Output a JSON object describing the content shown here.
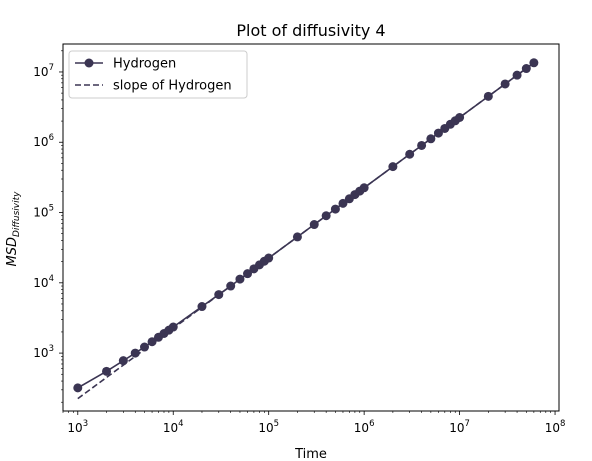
{
  "chart_data": {
    "type": "line",
    "title": "Plot of diffusivity 4",
    "xlabel": "Time",
    "ylabel": "MSD",
    "ylabel_sub": "Diffusivity",
    "xscale": "log",
    "yscale": "log",
    "xlim": [
      700,
      110000000
    ],
    "ylim": [
      150,
      25000000
    ],
    "grid": false,
    "legend_position": "top-left",
    "xticks": [
      {
        "value": 1000,
        "base": "10",
        "exp": "3"
      },
      {
        "value": 10000,
        "base": "10",
        "exp": "4"
      },
      {
        "value": 100000,
        "base": "10",
        "exp": "5"
      },
      {
        "value": 1000000,
        "base": "10",
        "exp": "6"
      },
      {
        "value": 10000000,
        "base": "10",
        "exp": "7"
      },
      {
        "value": 100000000,
        "base": "10",
        "exp": "8"
      }
    ],
    "yticks": [
      {
        "value": 1000,
        "base": "10",
        "exp": "3"
      },
      {
        "value": 10000,
        "base": "10",
        "exp": "4"
      },
      {
        "value": 100000,
        "base": "10",
        "exp": "5"
      },
      {
        "value": 1000000,
        "base": "10",
        "exp": "6"
      },
      {
        "value": 10000000,
        "base": "10",
        "exp": "7"
      }
    ],
    "series": [
      {
        "name": "Hydrogen",
        "style": "solid-marker",
        "color": "#3b3553",
        "x": [
          1000,
          2000,
          3000,
          4000,
          5000,
          6000,
          7000,
          8000,
          9000,
          10000,
          20000,
          30000,
          40000,
          50000,
          60000,
          70000,
          80000,
          90000,
          100000,
          200000,
          300000,
          400000,
          500000,
          600000,
          700000,
          800000,
          900000,
          1000000,
          2000000,
          3000000,
          4000000,
          5000000,
          6000000,
          7000000,
          8000000,
          9000000,
          10000000,
          20000000,
          30000000,
          40000000,
          50000000,
          60000000
        ],
        "y": [
          320,
          550,
          780,
          1000,
          1220,
          1450,
          1680,
          1900,
          2120,
          2350,
          4600,
          6800,
          9000,
          11300,
          13500,
          15800,
          18000,
          20300,
          22500,
          45000,
          67500,
          90000,
          112000,
          135000,
          157000,
          180000,
          202000,
          225000,
          450000,
          675000,
          900000,
          1120000,
          1350000,
          1570000,
          1800000,
          2020000,
          2250000,
          4500000,
          6750000,
          9000000,
          11200000,
          13500000
        ]
      },
      {
        "name": "slope of Hydrogen",
        "style": "dashed",
        "color": "#3b3553",
        "x": [
          1000,
          60000000
        ],
        "y": [
          225,
          13500000
        ]
      }
    ]
  }
}
